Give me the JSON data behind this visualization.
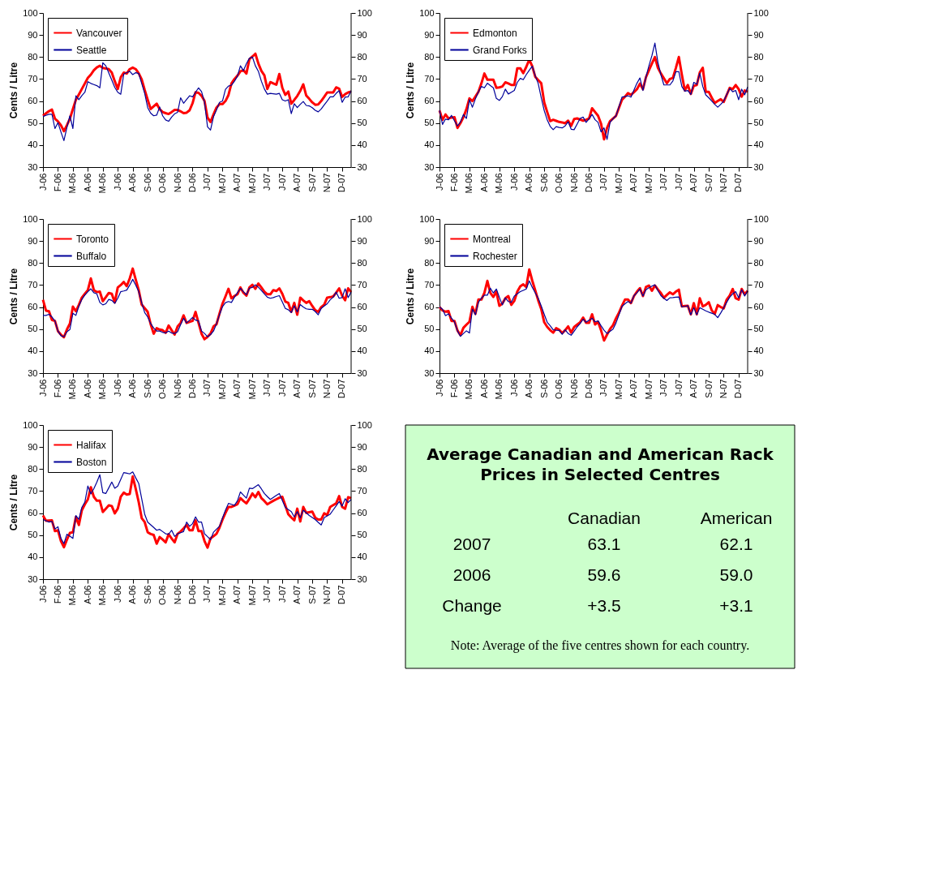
{
  "chart_data": [
    {
      "type": "line",
      "ylabel": "Cents / Litre",
      "legend": "top left",
      "grid": false,
      "ylim": [
        30,
        100
      ],
      "yticks": [
        30,
        40,
        50,
        60,
        70,
        80,
        90,
        100
      ],
      "y2lim": [
        30,
        100
      ],
      "y2ticks": [
        30,
        40,
        50,
        60,
        70,
        80,
        90,
        100
      ],
      "categories": [
        "J-06",
        null,
        null,
        null,
        null,
        "F-06",
        null,
        null,
        null,
        null,
        "M-06",
        null,
        null,
        null,
        null,
        "A-06",
        null,
        null,
        null,
        null,
        "M-06",
        null,
        null,
        null,
        null,
        "J-06",
        null,
        null,
        null,
        null,
        "A-06",
        null,
        null,
        null,
        null,
        "S-06",
        null,
        null,
        null,
        null,
        "O-06",
        null,
        null,
        null,
        null,
        "N-06",
        null,
        null,
        null,
        null,
        "D-06",
        null,
        null,
        null,
        null,
        "J-07",
        null,
        null,
        null,
        null,
        "M-07",
        null,
        null,
        null,
        null,
        "A-07",
        null,
        null,
        null,
        null,
        "M-07",
        null,
        null,
        null,
        null,
        "J-07",
        null,
        null,
        null,
        null,
        "J-07",
        null,
        null,
        null,
        null,
        "A-07",
        null,
        null,
        null,
        null,
        "S-07",
        null,
        null,
        null,
        null,
        "N-07",
        null,
        null,
        null,
        null,
        "D-07",
        null,
        null,
        null
      ],
      "series": [
        {
          "name": "Vancouver",
          "color": "#ff0000",
          "values": [
            53.3,
            54.4,
            55.4,
            56.1,
            52,
            50.8,
            49,
            46.3,
            49,
            52,
            56.4,
            60.6,
            63,
            65.5,
            68,
            70.5,
            72,
            74,
            75.3,
            76,
            75,
            74.8,
            74.5,
            72.9,
            69,
            65.5,
            70.8,
            72.9,
            72.5,
            74.5,
            75.2,
            74.5,
            72.6,
            69.8,
            65,
            60.6,
            56.4,
            57.6,
            58.8,
            56.3,
            55,
            54.5,
            54.1,
            55,
            56,
            56,
            55.3,
            54.5,
            54.7,
            55.8,
            59,
            64,
            63.7,
            62.4,
            60,
            52.5,
            50.5,
            53.9,
            57,
            58.6,
            58.6,
            60,
            62.7,
            68,
            70,
            71.5,
            73.5,
            74,
            72.5,
            79,
            80.2,
            81.5,
            77,
            73.7,
            71.7,
            65.5,
            68.6,
            68,
            67.4,
            72.3,
            66,
            62.8,
            64.3,
            58.8,
            60.5,
            62.3,
            64.6,
            67.6,
            62.5,
            61,
            59.4,
            58.3,
            58.5,
            60,
            61.9,
            63.9,
            63.9,
            63.9,
            66.2,
            65.6,
            61.9,
            63.1,
            63.9,
            64.3
          ]
        },
        {
          "name": "Seattle",
          "color": "#000099",
          "values": [
            53,
            53.5,
            54,
            54,
            47.5,
            50.2,
            46,
            42,
            48,
            53.3,
            47.5,
            62.4,
            60.6,
            62.5,
            64,
            68.8,
            68,
            67.5,
            67,
            66,
            77.4,
            76,
            72.7,
            69.5,
            66.2,
            64,
            63.1,
            72.3,
            72.9,
            73.5,
            72,
            72.9,
            72.5,
            68,
            63.5,
            57,
            54.5,
            53.3,
            53.6,
            57.3,
            53.3,
            51.4,
            50.8,
            52.7,
            54.2,
            54.9,
            61.5,
            59,
            60.7,
            62.4,
            61.9,
            64,
            66,
            64.3,
            59.4,
            48.3,
            46.8,
            52.9,
            56,
            59.4,
            60,
            65.3,
            66.8,
            67.2,
            69,
            71.3,
            76,
            73.8,
            77,
            79.4,
            80,
            76,
            73.5,
            69,
            65.5,
            63.1,
            63.5,
            63.3,
            63.1,
            63.5,
            60.6,
            60,
            60.6,
            54.3,
            58.8,
            57,
            58.5,
            59.8,
            58,
            57.8,
            57,
            55.8,
            55.1,
            56.4,
            58.2,
            60,
            61.9,
            61.9,
            63.5,
            64.7,
            59.4,
            61.8,
            61.9,
            64.7
          ]
        }
      ]
    },
    {
      "type": "line",
      "ylabel": "Cents / Litre",
      "legend": "top left",
      "grid": false,
      "ylim": [
        30,
        100
      ],
      "yticks": [
        30,
        40,
        50,
        60,
        70,
        80,
        90,
        100
      ],
      "y2lim": [
        30,
        100
      ],
      "y2ticks": [
        30,
        40,
        50,
        60,
        70,
        80,
        90,
        100
      ],
      "categories": [
        "J-06",
        null,
        null,
        null,
        null,
        "F-06",
        null,
        null,
        null,
        null,
        "M-06",
        null,
        null,
        null,
        null,
        "A-06",
        null,
        null,
        null,
        null,
        "M-06",
        null,
        null,
        null,
        null,
        "J-06",
        null,
        null,
        null,
        null,
        "A-06",
        null,
        null,
        null,
        null,
        "S-06",
        null,
        null,
        null,
        null,
        "O-06",
        null,
        null,
        null,
        null,
        "N-06",
        null,
        null,
        null,
        null,
        "D-06",
        null,
        null,
        null,
        null,
        "J-07",
        null,
        null,
        null,
        null,
        "M-07",
        null,
        null,
        null,
        null,
        "A-07",
        null,
        null,
        null,
        null,
        "M-07",
        null,
        null,
        null,
        null,
        "J-07",
        null,
        null,
        null,
        null,
        "J-07",
        null,
        null,
        null,
        null,
        "A-07",
        null,
        null,
        null,
        null,
        "S-07",
        null,
        null,
        null,
        null,
        "N-07",
        null,
        null,
        null,
        null,
        "D-07",
        null,
        null,
        null
      ],
      "series": [
        {
          "name": "Edmonton",
          "color": "#ff0000",
          "values": [
            55.7,
            51.5,
            53.9,
            52.1,
            52.5,
            52.7,
            47.8,
            50,
            52.7,
            56.3,
            61.2,
            60,
            62,
            64.2,
            68,
            72.5,
            69.7,
            69.7,
            69.7,
            66,
            66.2,
            66.6,
            68.5,
            68,
            67.3,
            67.3,
            74.9,
            74.9,
            72.7,
            75.5,
            78.8,
            75.8,
            71,
            69.5,
            68.1,
            59.4,
            55,
            50.9,
            51.5,
            51,
            50.5,
            50.3,
            49.9,
            51.1,
            48.7,
            51.8,
            52.1,
            51.6,
            51.1,
            51.5,
            52.1,
            56.7,
            55,
            53.3,
            49.7,
            42.6,
            47.8,
            50.9,
            52.1,
            53.3,
            57,
            60.6,
            62,
            63.6,
            62.8,
            64,
            65.4,
            67.9,
            65.4,
            70.8,
            74,
            77,
            80,
            75.1,
            72.5,
            70.3,
            68.1,
            70,
            70.5,
            75,
            80,
            72,
            64.8,
            67.3,
            63.2,
            66.9,
            67.3,
            73,
            75.1,
            64.2,
            64.2,
            61.5,
            59.1,
            60,
            60.8,
            59.6,
            62.8,
            66,
            65.4,
            67.3,
            65.4,
            62,
            64.8,
            64.2
          ]
        },
        {
          "name": "Grand Forks",
          "color": "#000099",
          "values": [
            55.7,
            49.4,
            51.8,
            51.5,
            53.5,
            51,
            48.7,
            50.5,
            53.9,
            52.1,
            60.6,
            57.2,
            61,
            64.2,
            66.6,
            66,
            68.1,
            67,
            66,
            61.2,
            60.3,
            62,
            65.4,
            63.2,
            64,
            64.8,
            68.5,
            70.3,
            69.7,
            72,
            74,
            75.8,
            71.5,
            67.9,
            61.5,
            55.7,
            51.5,
            48.5,
            47,
            48.4,
            48,
            47.8,
            48.7,
            50.6,
            47.2,
            47,
            49.5,
            52.1,
            52.7,
            50.3,
            52,
            53.9,
            51.5,
            50.3,
            46,
            47.8,
            42.6,
            50.3,
            52,
            53.3,
            57.5,
            61.8,
            62,
            62.4,
            61.8,
            65,
            68.1,
            70.5,
            64.8,
            70.8,
            76,
            80.6,
            86.3,
            77.6,
            72,
            67.3,
            67.3,
            67.3,
            69.1,
            73.3,
            73.3,
            66.6,
            64.5,
            64.8,
            63,
            68.5,
            67.6,
            72.7,
            66.6,
            62.8,
            61.5,
            60,
            58.5,
            57.2,
            58.5,
            60,
            63,
            65.7,
            64.2,
            64.8,
            60.6,
            65.4,
            62.8,
            66.4
          ]
        }
      ]
    },
    {
      "type": "line",
      "ylabel": "Cents / Litre",
      "legend": "top left",
      "grid": false,
      "ylim": [
        30,
        100
      ],
      "yticks": [
        30,
        40,
        50,
        60,
        70,
        80,
        90,
        100
      ],
      "y2lim": [
        30,
        100
      ],
      "y2ticks": [
        30,
        40,
        50,
        60,
        70,
        80,
        90,
        100
      ],
      "categories": [
        "J-06",
        null,
        null,
        null,
        null,
        "F-06",
        null,
        null,
        null,
        null,
        "M-06",
        null,
        null,
        null,
        null,
        "A-06",
        null,
        null,
        null,
        null,
        "M-06",
        null,
        null,
        null,
        null,
        "J-06",
        null,
        null,
        null,
        null,
        "A-06",
        null,
        null,
        null,
        null,
        "S-06",
        null,
        null,
        null,
        null,
        "O-06",
        null,
        null,
        null,
        null,
        "N-06",
        null,
        null,
        null,
        null,
        "D-06",
        null,
        null,
        null,
        null,
        "J-07",
        null,
        null,
        null,
        null,
        "M-07",
        null,
        null,
        null,
        null,
        "A-07",
        null,
        null,
        null,
        null,
        "M-07",
        null,
        null,
        null,
        null,
        "J-07",
        null,
        null,
        null,
        null,
        "J-07",
        null,
        null,
        null,
        null,
        "A-07",
        null,
        null,
        null,
        null,
        "S-07",
        null,
        null,
        null,
        null,
        "N-07",
        null,
        null,
        null,
        null,
        "D-07",
        null,
        null,
        null
      ],
      "series": [
        {
          "name": "Toronto",
          "color": "#ff0000",
          "values": [
            63.3,
            58.4,
            58.1,
            54.1,
            53.7,
            49.1,
            47.5,
            46.3,
            49.8,
            52.5,
            60.2,
            58.1,
            61,
            64.3,
            66,
            67.7,
            73,
            67.7,
            66.8,
            67,
            62.7,
            64.5,
            66.4,
            66,
            62.1,
            68.9,
            70,
            71.4,
            69.5,
            73,
            77.5,
            72.5,
            67.7,
            61.1,
            59.5,
            57.8,
            52.2,
            47.9,
            50.4,
            49.8,
            49.5,
            48.3,
            51.6,
            49.5,
            47.5,
            51.2,
            52.8,
            56.2,
            52.8,
            53.3,
            53.7,
            57.8,
            52.8,
            47.9,
            45.4,
            46.5,
            47.9,
            51.2,
            52.2,
            57,
            61.5,
            64.8,
            68.3,
            64,
            65,
            65.8,
            68.9,
            66.5,
            65.2,
            68.9,
            70.1,
            68.3,
            70.7,
            68.9,
            67,
            65.8,
            65.8,
            67.7,
            67.3,
            68.5,
            66,
            62.5,
            61.9,
            57.8,
            61.9,
            56.5,
            64.3,
            63,
            61.9,
            62.7,
            60.5,
            58.6,
            57.8,
            60,
            61.1,
            64.3,
            64.5,
            64.8,
            66.5,
            68.5,
            65.2,
            63.1,
            68.5,
            66.8
          ]
        },
        {
          "name": "Buffalo",
          "color": "#000099",
          "values": [
            56.2,
            56.2,
            56.7,
            55.5,
            53.7,
            49.1,
            47,
            46.5,
            48.8,
            49.8,
            57.2,
            56.2,
            60.5,
            63.5,
            65.5,
            67,
            68.3,
            66.5,
            66,
            62.1,
            61,
            61.5,
            63.5,
            63,
            61.7,
            64,
            67,
            67.3,
            67.7,
            70,
            72.6,
            70,
            67,
            62,
            57.5,
            55.5,
            52.5,
            50.5,
            49.1,
            49.1,
            48.5,
            48.3,
            49.1,
            48.2,
            48,
            48.8,
            52,
            54.9,
            52.8,
            54,
            55.3,
            54.1,
            53.7,
            49.1,
            48,
            46.5,
            47.5,
            49.1,
            52.5,
            56.5,
            60.2,
            62,
            62.5,
            62.1,
            64.5,
            66.5,
            68.5,
            67,
            65.6,
            68.6,
            68.9,
            70.1,
            69,
            67.5,
            66,
            64.5,
            64,
            64.3,
            64.8,
            65.2,
            62.3,
            59.4,
            58.8,
            57.5,
            60.6,
            57.8,
            61.1,
            60,
            59.2,
            59,
            59,
            58,
            56.5,
            59.4,
            60.5,
            61.5,
            63.3,
            64.5,
            66.8,
            64,
            64.3,
            68.3,
            64.3,
            66.8
          ]
        }
      ]
    },
    {
      "type": "line",
      "ylabel": "Cents / Litre",
      "legend": "top left",
      "grid": false,
      "ylim": [
        30,
        100
      ],
      "yticks": [
        30,
        40,
        50,
        60,
        70,
        80,
        90,
        100
      ],
      "y2lim": [
        30,
        100
      ],
      "y2ticks": [
        30,
        40,
        50,
        60,
        70,
        80,
        90,
        100
      ],
      "categories": [
        "J-06",
        null,
        null,
        null,
        null,
        "F-06",
        null,
        null,
        null,
        null,
        "M-06",
        null,
        null,
        null,
        null,
        "A-06",
        null,
        null,
        null,
        null,
        "M-06",
        null,
        null,
        null,
        null,
        "J-06",
        null,
        null,
        null,
        null,
        "A-06",
        null,
        null,
        null,
        null,
        "S-06",
        null,
        null,
        null,
        null,
        "O-06",
        null,
        null,
        null,
        null,
        "N-06",
        null,
        null,
        null,
        null,
        "D-06",
        null,
        null,
        null,
        null,
        "J-07",
        null,
        null,
        null,
        null,
        "M-07",
        null,
        null,
        null,
        null,
        "A-07",
        null,
        null,
        null,
        null,
        "M-07",
        null,
        null,
        null,
        null,
        "J-07",
        null,
        null,
        null,
        null,
        "J-07",
        null,
        null,
        null,
        null,
        "A-07",
        null,
        null,
        null,
        null,
        "S-07",
        null,
        null,
        null,
        null,
        "N-07",
        null,
        null,
        null,
        null,
        "D-07",
        null,
        null,
        null
      ],
      "series": [
        {
          "name": "Montreal",
          "color": "#ff0000",
          "values": [
            60,
            58.5,
            57.9,
            58.2,
            53.7,
            53.7,
            49.4,
            47.2,
            50.6,
            52,
            53.3,
            60.1,
            56.9,
            63.4,
            63.4,
            66.4,
            71.9,
            66.4,
            64.6,
            67,
            60.6,
            61.6,
            64,
            65,
            61,
            62.8,
            67,
            69.4,
            70.3,
            69.1,
            77.1,
            72,
            67.6,
            63,
            59.1,
            53.1,
            51,
            49.5,
            48.4,
            50.4,
            49.7,
            48.2,
            49.5,
            51.2,
            48.4,
            50.9,
            52,
            53.1,
            55.2,
            52.8,
            52.8,
            56.7,
            52.1,
            53.3,
            49.4,
            44.8,
            47.5,
            50,
            51.8,
            54.9,
            57.5,
            60.6,
            63.4,
            63.4,
            61.8,
            65,
            67,
            68.6,
            65,
            69.1,
            69.8,
            67.4,
            69.8,
            68,
            66.4,
            64.2,
            65.5,
            66.7,
            65.8,
            67,
            67.9,
            60.3,
            60.5,
            60.6,
            56.7,
            61.8,
            56.7,
            64,
            60.3,
            61,
            62.2,
            58.5,
            56.9,
            60.9,
            60,
            59.4,
            63.4,
            65.2,
            68.2,
            64,
            63.4,
            68.2,
            65.8,
            67.4
          ]
        },
        {
          "name": "Rochester",
          "color": "#000099",
          "values": [
            60,
            59,
            56.1,
            56.9,
            55,
            53.3,
            49.2,
            46.7,
            48,
            49.2,
            48.2,
            59.1,
            56.5,
            62.2,
            64,
            65.4,
            65.4,
            68.6,
            66.4,
            68.2,
            64.5,
            61,
            64.2,
            62.5,
            62.2,
            65,
            66,
            67,
            67.6,
            68.2,
            71.9,
            69,
            66.5,
            64,
            60.5,
            56.7,
            53.1,
            51.5,
            49.7,
            49.5,
            49.4,
            47.6,
            49.7,
            48,
            47.2,
            49,
            51,
            52.5,
            54.5,
            53.1,
            54,
            54.9,
            53.3,
            53.7,
            51.5,
            49.5,
            48,
            49,
            50,
            52.8,
            56.5,
            60.3,
            61.5,
            62.5,
            61.8,
            65.2,
            66.5,
            68.2,
            65,
            67.9,
            68.8,
            69.5,
            70.1,
            67.5,
            65.2,
            64,
            63,
            64.2,
            64.3,
            64.5,
            64.6,
            60.1,
            60.3,
            60.6,
            56.5,
            59.7,
            56.5,
            59.7,
            59,
            58.3,
            57.7,
            57.2,
            56.7,
            55.2,
            57.3,
            59.7,
            62.2,
            64.5,
            66,
            67,
            64.2,
            67.9,
            65,
            67.4
          ]
        }
      ]
    },
    {
      "type": "line",
      "ylabel": "Cents / Litre",
      "legend": "top left",
      "grid": false,
      "ylim": [
        30,
        100
      ],
      "yticks": [
        30,
        40,
        50,
        60,
        70,
        80,
        90,
        100
      ],
      "y2lim": [
        30,
        100
      ],
      "y2ticks": [
        30,
        40,
        50,
        60,
        70,
        80,
        90,
        100
      ],
      "categories": [
        "J-06",
        null,
        null,
        null,
        null,
        "F-06",
        null,
        null,
        null,
        null,
        "M-06",
        null,
        null,
        null,
        null,
        "A-06",
        null,
        null,
        null,
        null,
        "M-06",
        null,
        null,
        null,
        null,
        "J-06",
        null,
        null,
        null,
        null,
        "A-06",
        null,
        null,
        null,
        null,
        "S-06",
        null,
        null,
        null,
        null,
        "O-06",
        null,
        null,
        null,
        null,
        "N-06",
        null,
        null,
        null,
        null,
        "D-06",
        null,
        null,
        null,
        null,
        "J-07",
        null,
        null,
        null,
        null,
        "M-07",
        null,
        null,
        null,
        null,
        "A-07",
        null,
        null,
        null,
        null,
        "M-07",
        null,
        null,
        null,
        null,
        "J-07",
        null,
        null,
        null,
        null,
        "J-07",
        null,
        null,
        null,
        null,
        "A-07",
        null,
        null,
        null,
        null,
        "S-07",
        null,
        null,
        null,
        null,
        "N-07",
        null,
        null,
        null,
        null,
        "D-07",
        null,
        null,
        null
      ],
      "series": [
        {
          "name": "Halifax",
          "color": "#ff0000",
          "values": [
            58.9,
            56.5,
            56.6,
            56.7,
            51.8,
            52.2,
            47.3,
            44.5,
            47.9,
            51,
            51.3,
            58.3,
            54.6,
            61.3,
            64,
            66.2,
            71.7,
            67.4,
            65.6,
            65.6,
            60.5,
            62,
            63.5,
            63.2,
            59.9,
            62,
            67.4,
            69.3,
            68.4,
            68.7,
            76.6,
            71,
            65,
            57.7,
            55.9,
            51.3,
            50.5,
            50.1,
            46.1,
            49.1,
            48,
            46.7,
            50.4,
            48.5,
            46.7,
            50.6,
            51.6,
            53,
            54.6,
            52.2,
            52.2,
            56.7,
            51.8,
            51.8,
            47.3,
            44.3,
            48.5,
            49.5,
            50.6,
            53.4,
            57,
            60.1,
            62.8,
            62.8,
            63.4,
            64,
            66.8,
            65.5,
            64.4,
            66.5,
            68.9,
            67.2,
            69.6,
            66.8,
            65.5,
            64,
            64.8,
            65.6,
            66.3,
            67,
            67.4,
            63.5,
            59.5,
            58,
            56.7,
            62,
            56.2,
            62.8,
            60.1,
            60.4,
            60.7,
            57.9,
            57.1,
            57.1,
            59.9,
            59.1,
            62.8,
            63.6,
            64.4,
            67.7,
            62.8,
            62,
            67.2,
            66.8
          ]
        },
        {
          "name": "Boston",
          "color": "#000099",
          "values": [
            57.1,
            56.5,
            55.9,
            56.2,
            52.8,
            53.8,
            48.5,
            46.1,
            50.4,
            49.5,
            48.5,
            58.9,
            57.1,
            62.6,
            65,
            72.3,
            68.7,
            71.1,
            74,
            77.4,
            69.3,
            68.9,
            71.5,
            74.1,
            71.3,
            72.3,
            75.3,
            78.4,
            78.1,
            77.8,
            78.7,
            76,
            73.5,
            66.5,
            59.5,
            55.9,
            54.7,
            53.5,
            52.2,
            52.6,
            51.6,
            50.6,
            50.4,
            52.2,
            49.4,
            50.6,
            51.1,
            51.6,
            55.9,
            54,
            55.2,
            58.3,
            55.9,
            55.9,
            50.6,
            49.3,
            47.9,
            51.3,
            52.7,
            54,
            57.7,
            61.3,
            64.4,
            64,
            63.5,
            65.6,
            69.6,
            68.2,
            66.8,
            71.3,
            71.1,
            72,
            72.9,
            71,
            68.9,
            67.5,
            66.2,
            67.1,
            68,
            68.9,
            65.7,
            62.6,
            61.6,
            60.7,
            58.3,
            60.7,
            57.9,
            61.3,
            60.1,
            58.9,
            58,
            57.1,
            55.8,
            54.6,
            57.9,
            58.7,
            59.5,
            61.4,
            63.3,
            65.2,
            63.2,
            66.5,
            64.8,
            66.2
          ]
        }
      ]
    },
    {
      "type": "other",
      "title": "Average Canadian and American Rack Prices in Selected Centres",
      "categories": [
        "2007",
        "2006",
        "Change"
      ],
      "series": [
        {
          "name": "Canadian",
          "values": [
            63.1,
            59.6,
            3.5
          ],
          "value_labels": [
            "63.1",
            "59.6",
            "+3.5"
          ]
        },
        {
          "name": "American",
          "values": [
            62.1,
            59.0,
            3.1
          ],
          "value_labels": [
            "62.1",
            "59.0",
            "+3.1"
          ]
        }
      ],
      "annotations": [
        "Note: Average of the five centres shown for each country."
      ]
    }
  ]
}
